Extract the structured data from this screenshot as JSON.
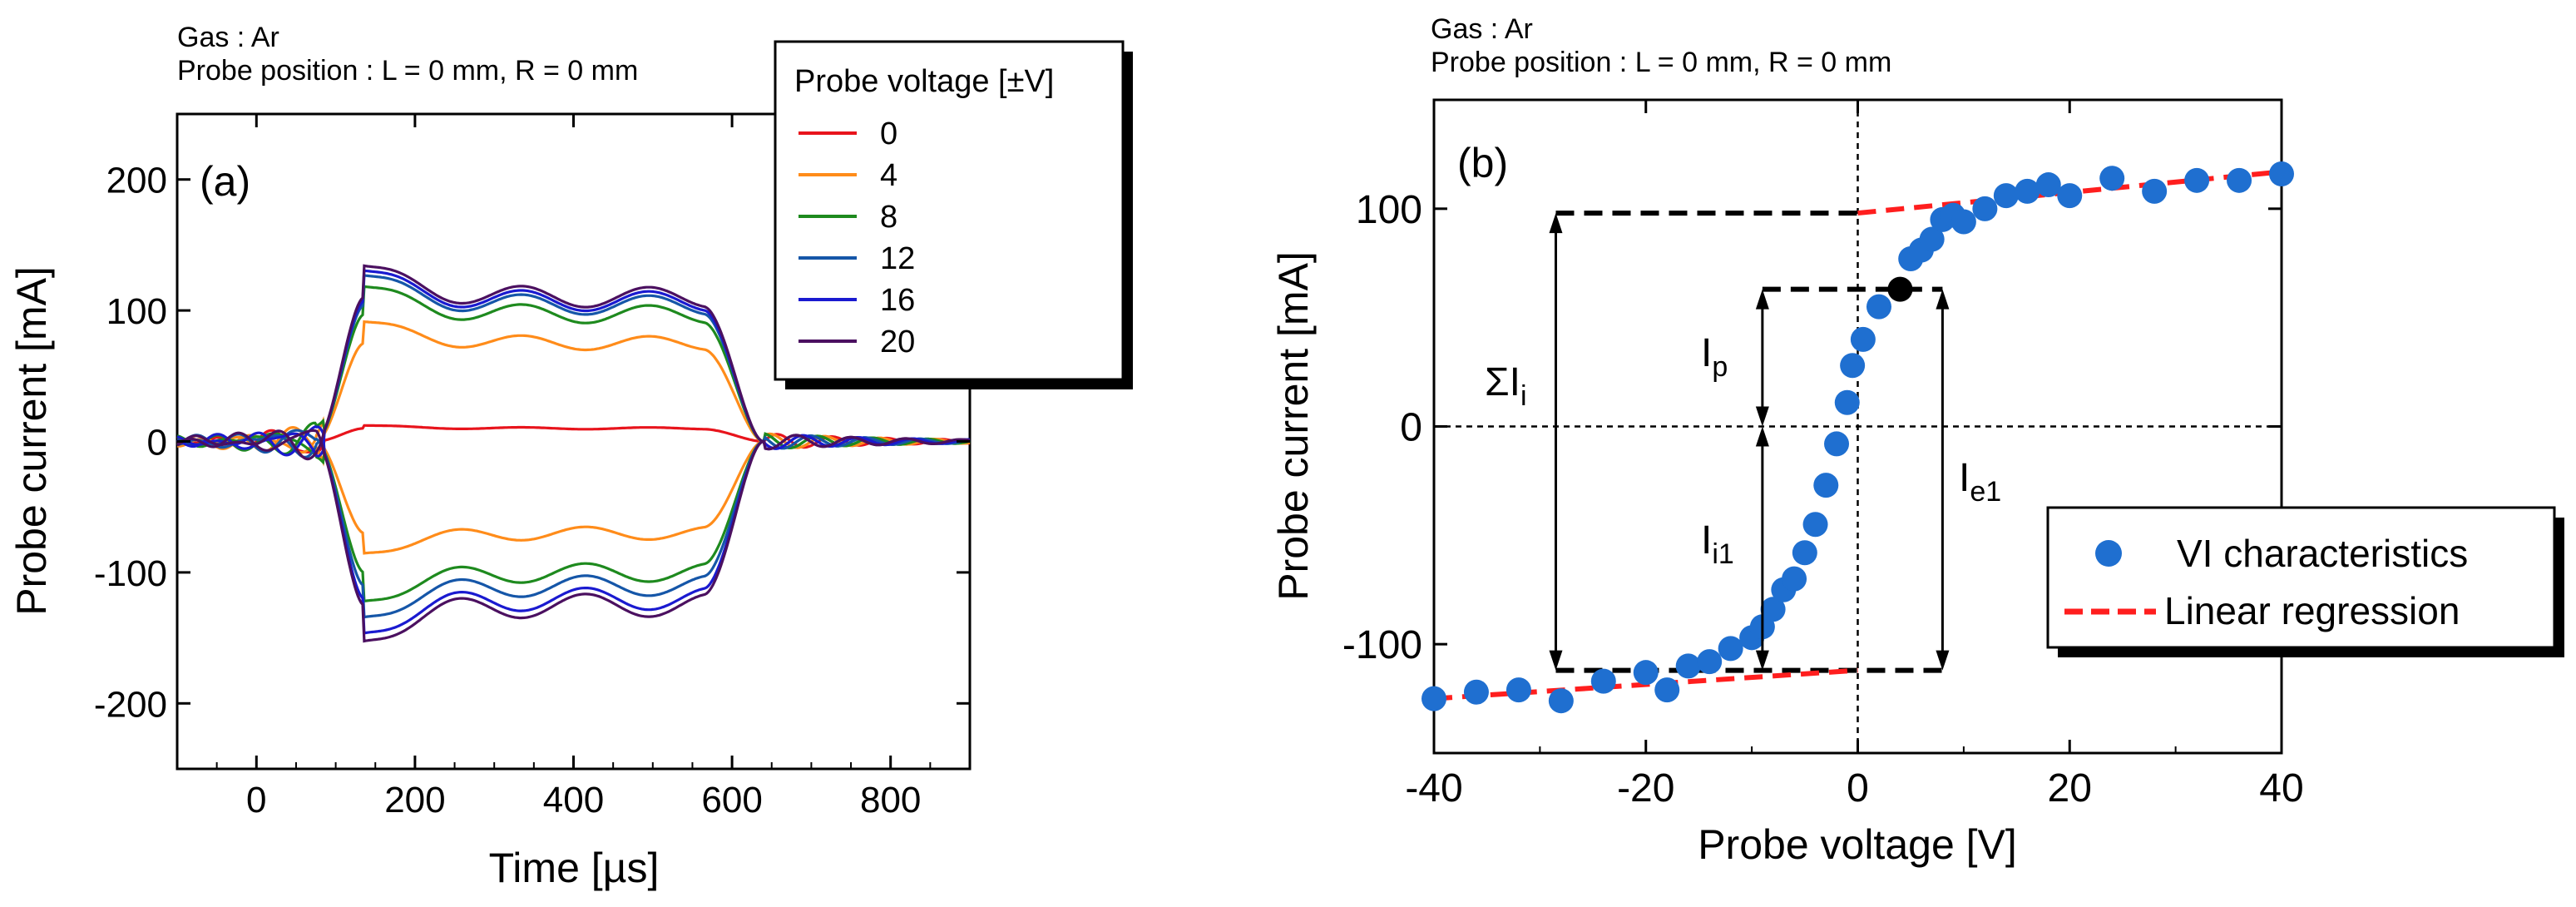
{
  "chart_data": [
    {
      "type": "line",
      "panel": "(a)",
      "header": [
        "Gas : Ar",
        "Probe position : L = 0 mm, R = 0 mm"
      ],
      "xlabel": "Time [µs]",
      "ylabel": "Probe current [mA]",
      "xlim": [
        -100,
        900
      ],
      "ylim": [
        -250,
        250
      ],
      "xticks": [
        0,
        200,
        400,
        600,
        800
      ],
      "yticks": [
        -200,
        -100,
        0,
        100,
        200
      ],
      "legend_title": "Probe voltage [±V]",
      "legend_position": "top-right",
      "pulse": {
        "rise_start": 75,
        "rise_end": 135,
        "fall_start": 565,
        "fall_end": 640,
        "ripple_period": 160
      },
      "series": [
        {
          "name": "0",
          "color": "#e8141c",
          "plateau_pos": 10,
          "plateau_neg": null
        },
        {
          "name": "4",
          "color": "#ff8c1a",
          "plateau_pos": 75,
          "plateau_neg": -70
        },
        {
          "name": "8",
          "color": "#1e8a1e",
          "plateau_pos": 97,
          "plateau_neg": -100
        },
        {
          "name": "12",
          "color": "#1556a8",
          "plateau_pos": 104,
          "plateau_neg": -110
        },
        {
          "name": "16",
          "color": "#1a1ad0",
          "plateau_pos": 107,
          "plateau_neg": -120
        },
        {
          "name": "20",
          "color": "#4b1060",
          "plateau_pos": 110,
          "plateau_neg": -125
        }
      ]
    },
    {
      "type": "scatter",
      "panel": "(b)",
      "header": [
        "Gas : Ar",
        "Probe position : L = 0 mm, R = 0 mm"
      ],
      "xlabel": "Probe voltage [V]",
      "ylabel": "Probe current [mA]",
      "xlim": [
        -40,
        40
      ],
      "ylim": [
        -150,
        150
      ],
      "xticks": [
        -40,
        -20,
        0,
        20,
        40
      ],
      "yticks": [
        -100,
        0,
        100
      ],
      "legend": [
        "VI characteristics",
        "Linear regression"
      ],
      "legend_position": "bottom-right",
      "vi_points": [
        {
          "x": -40,
          "y": -125
        },
        {
          "x": -36,
          "y": -122
        },
        {
          "x": -32,
          "y": -121
        },
        {
          "x": -28,
          "y": -126
        },
        {
          "x": -24,
          "y": -117
        },
        {
          "x": -20,
          "y": -113
        },
        {
          "x": -18,
          "y": -121
        },
        {
          "x": -16,
          "y": -110
        },
        {
          "x": -14,
          "y": -108
        },
        {
          "x": -12,
          "y": -102
        },
        {
          "x": -10,
          "y": -97
        },
        {
          "x": -9,
          "y": -92
        },
        {
          "x": -8,
          "y": -84
        },
        {
          "x": -7,
          "y": -75
        },
        {
          "x": -6,
          "y": -70
        },
        {
          "x": -5,
          "y": -58
        },
        {
          "x": -4,
          "y": -45
        },
        {
          "x": -3,
          "y": -27
        },
        {
          "x": -2,
          "y": -8
        },
        {
          "x": -1,
          "y": 11
        },
        {
          "x": -0.5,
          "y": 28
        },
        {
          "x": 0.5,
          "y": 40
        },
        {
          "x": 2,
          "y": 55
        },
        {
          "x": 5,
          "y": 77
        },
        {
          "x": 6,
          "y": 81
        },
        {
          "x": 7,
          "y": 86
        },
        {
          "x": 8,
          "y": 95
        },
        {
          "x": 9,
          "y": 97
        },
        {
          "x": 10,
          "y": 94
        },
        {
          "x": 12,
          "y": 100
        },
        {
          "x": 14,
          "y": 106
        },
        {
          "x": 16,
          "y": 108
        },
        {
          "x": 18,
          "y": 111
        },
        {
          "x": 20,
          "y": 106
        },
        {
          "x": 24,
          "y": 114
        },
        {
          "x": 28,
          "y": 108
        },
        {
          "x": 32,
          "y": 113
        },
        {
          "x": 36,
          "y": 113
        },
        {
          "x": 40,
          "y": 116
        }
      ],
      "highlight_point": {
        "x": 4,
        "y": 63
      },
      "regression_ion": {
        "x": [
          -40,
          0
        ],
        "y": [
          -125,
          -112
        ]
      },
      "regression_electron": {
        "x": [
          0,
          40
        ],
        "y": [
          98,
          117
        ]
      },
      "annotations": [
        {
          "text": "ΣI",
          "sub": "i"
        },
        {
          "text": "I",
          "sub": "p"
        },
        {
          "text": "I",
          "sub": "i1"
        },
        {
          "text": "I",
          "sub": "e1"
        }
      ]
    }
  ]
}
